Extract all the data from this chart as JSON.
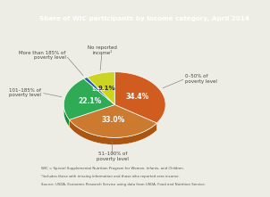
{
  "title": "Share of WIC participants by income category, April 2014",
  "slices": [
    34.4,
    33.0,
    22.1,
    1.3,
    9.1
  ],
  "labels": [
    "0–50% of\npoverty level",
    "51–100% of\npoverty level",
    "101–185% of\npoverty level",
    "More than 185% of\npoverty level",
    "No reported\nincome¹"
  ],
  "colors_top": [
    "#d05c20",
    "#cc7a30",
    "#2faa55",
    "#1a5faa",
    "#ccd422"
  ],
  "colors_side": [
    "#a04010",
    "#aa5510",
    "#1a8a35",
    "#103a7a",
    "#aaaa10"
  ],
  "pct_labels": [
    "34.4%",
    "33.0%",
    "22.1%",
    "1.3%",
    "9.1%"
  ],
  "startangle": 90,
  "bg_color": "#eeede5",
  "title_bg_top": "#1a5a78",
  "title_bg_bot": "#2a7a9a",
  "title_color": "white",
  "footnote1": "WIC = Special Supplemental Nutrition Program for Women, Infants, and Children.",
  "footnote2": "¹Includes those with missing information and those who reported zero income.",
  "footnote3": "Source: USDA, Economic Research Service using data from USDA, Food and Nutrition Service.",
  "label_color": "#444444",
  "pct_colors": [
    "white",
    "white",
    "white",
    "white",
    "#333333"
  ]
}
